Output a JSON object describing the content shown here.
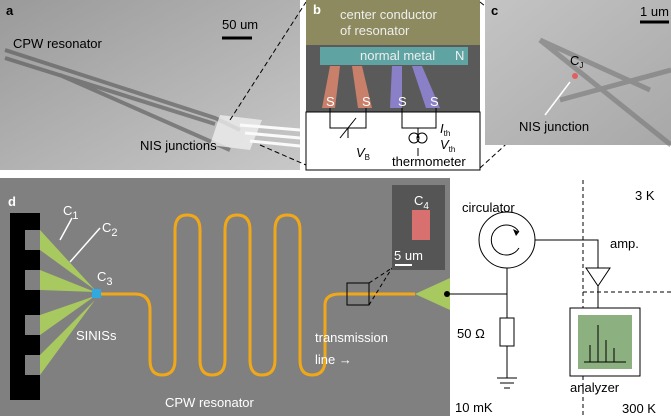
{
  "panel_a": {
    "letter": "a",
    "scale": "50 um",
    "labels": [
      "CPW resonator",
      "NIS junctions"
    ]
  },
  "panel_b": {
    "letter": "b",
    "top": [
      "center conductor",
      "of resonator"
    ],
    "metal": "normal metal",
    "n": "N",
    "s": [
      "S",
      "S",
      "S",
      "S"
    ],
    "vb": {
      "base": "V",
      "sub": "B"
    },
    "ith": {
      "base": "I",
      "sub": "th"
    },
    "vth": {
      "base": "V",
      "sub": "th"
    },
    "thermometer": "thermometer"
  },
  "panel_c": {
    "letter": "c",
    "scale": "1 um",
    "cj": {
      "base": "C",
      "sub": "J"
    },
    "junction": "NIS junction"
  },
  "panel_d": {
    "letter": "d",
    "c1": {
      "base": "C",
      "sub": "1"
    },
    "c2": {
      "base": "C",
      "sub": "2"
    },
    "c3": {
      "base": "C",
      "sub": "3"
    },
    "c4": {
      "base": "C",
      "sub": "4"
    },
    "inset_scale": "5 um",
    "sinis": "SINISs",
    "cpw": "CPW resonator",
    "line": [
      "transmission",
      "line →"
    ],
    "circulator": "circulator",
    "load": "50 Ω",
    "t3k": "3 K",
    "amp": "amp.",
    "analyzer": "analyzer",
    "t10mk": "10 mK",
    "t300k": "300 K"
  }
}
